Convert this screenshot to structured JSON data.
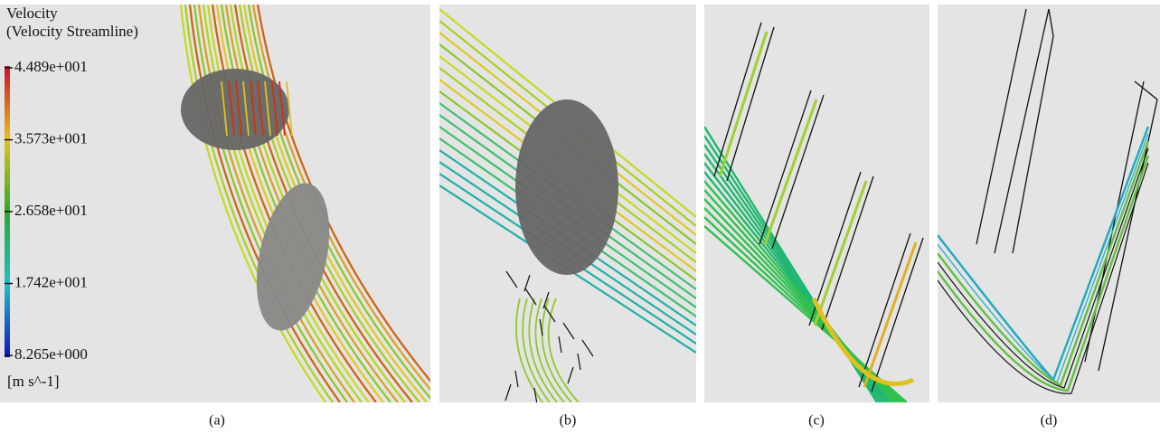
{
  "legend": {
    "title": "Velocity",
    "subtitle": "(Velocity Streamline)",
    "ticks": [
      {
        "value": 44.89,
        "label": "4.489e+001"
      },
      {
        "value": 35.73,
        "label": "3.573e+001"
      },
      {
        "value": 26.58,
        "label": "2.658e+001"
      },
      {
        "value": 17.42,
        "label": "1.742e+001"
      },
      {
        "value": 8.265,
        "label": "8.265e+000"
      }
    ],
    "unit": "[m s^-1]"
  },
  "panels": [
    {
      "caption": "(a)"
    },
    {
      "caption": "(b)"
    },
    {
      "caption": "(c)"
    },
    {
      "caption": "(d)"
    }
  ]
}
